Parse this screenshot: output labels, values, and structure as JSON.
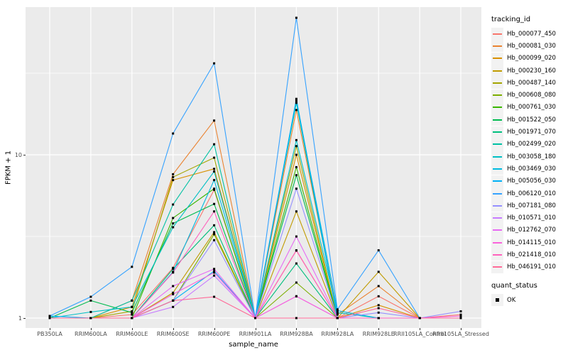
{
  "figure": {
    "background": "#FFFFFF",
    "panel_background": "#EBEBEB",
    "grid_color": "#FFFFFF",
    "axis_text_color": "#4D4D4D",
    "point_color": "#000000"
  },
  "chart_data": {
    "type": "line",
    "title": "",
    "xlabel": "sample_name",
    "ylabel": "FPKM + 1",
    "y_scale": "log10",
    "ylim": [
      0.87,
      80
    ],
    "grid": true,
    "legend_position": "right",
    "y_ticks": [
      {
        "value": 1,
        "label": "1"
      },
      {
        "value": 10,
        "label": "10"
      }
    ],
    "y_minor_breaks": [
      3.1623,
      31.623
    ],
    "x_categories": [
      "PB350LA",
      "RRIM600LA",
      "RRIM600LE",
      "RRIM600SE",
      "RRIM600PE",
      "RRIM901LA",
      "RRIM928BA",
      "RRIM928LA",
      "RRIM928LE",
      "RRII105LA_Control",
      "RRII105LA_Stressed"
    ],
    "legend_title": "tracking_id",
    "quant_legend": {
      "title": "quant_status",
      "items": [
        {
          "label": "OK",
          "marker": "black-square"
        }
      ]
    },
    "series": [
      {
        "name": "Hb_000077_450",
        "color": "#F8766D",
        "values": [
          1.0,
          1.0,
          1.05,
          2.03,
          6.1,
          1.0,
          2.59,
          1.0,
          1.36,
          1.0,
          1.05
        ]
      },
      {
        "name": "Hb_000081_030",
        "color": "#EA8331",
        "values": [
          1.0,
          1.0,
          1.28,
          7.6,
          16.2,
          1.0,
          18.8,
          1.05,
          1.57,
          1.0,
          1.0
        ]
      },
      {
        "name": "Hb_000099_020",
        "color": "#D89000",
        "values": [
          1.0,
          1.0,
          1.17,
          7.0,
          8.2,
          1.0,
          10.0,
          1.0,
          1.2,
          1.0,
          1.0
        ]
      },
      {
        "name": "Hb_000230_160",
        "color": "#C09B00",
        "values": [
          1.0,
          1.0,
          1.0,
          1.43,
          3.36,
          1.0,
          4.5,
          1.0,
          1.92,
          1.0,
          1.0
        ]
      },
      {
        "name": "Hb_000487_140",
        "color": "#A3A500",
        "values": [
          1.0,
          1.0,
          1.1,
          7.3,
          9.6,
          1.0,
          11.3,
          1.0,
          1.0,
          1.0,
          1.0
        ]
      },
      {
        "name": "Hb_000608_080",
        "color": "#7CAE00",
        "values": [
          1.0,
          1.0,
          1.0,
          1.28,
          3.26,
          1.0,
          1.65,
          1.0,
          1.0,
          1.0,
          1.0
        ]
      },
      {
        "name": "Hb_000761_030",
        "color": "#39B600",
        "values": [
          1.0,
          1.0,
          1.0,
          4.1,
          6.2,
          1.0,
          8.4,
          1.0,
          1.0,
          1.0,
          1.0
        ]
      },
      {
        "name": "Hb_001522_050",
        "color": "#00BB4E",
        "values": [
          1.0,
          1.28,
          1.08,
          3.8,
          5.0,
          1.0,
          7.5,
          1.0,
          1.0,
          1.0,
          1.0
        ]
      },
      {
        "name": "Hb_001971_070",
        "color": "#00BF7D",
        "values": [
          1.0,
          1.0,
          1.0,
          2.0,
          3.7,
          1.0,
          2.16,
          1.0,
          1.0,
          1.0,
          1.0
        ]
      },
      {
        "name": "Hb_002499_020",
        "color": "#00C1A3",
        "values": [
          1.0,
          1.0,
          1.28,
          4.96,
          11.6,
          1.0,
          20.8,
          1.0,
          1.0,
          1.0,
          1.0
        ]
      },
      {
        "name": "Hb_003058_180",
        "color": "#00BFC4",
        "values": [
          1.0,
          1.09,
          1.17,
          3.6,
          7.9,
          1.0,
          12.3,
          1.08,
          1.0,
          1.0,
          1.0
        ]
      },
      {
        "name": "Hb_003469_030",
        "color": "#00BAE0",
        "values": [
          1.0,
          1.0,
          1.0,
          1.92,
          7.0,
          1.0,
          21.4,
          1.11,
          1.0,
          1.0,
          1.0
        ]
      },
      {
        "name": "Hb_005056_030",
        "color": "#00B0F6",
        "values": [
          1.03,
          1.0,
          1.0,
          1.28,
          1.94,
          1.0,
          22.0,
          1.0,
          1.0,
          1.0,
          1.0
        ]
      },
      {
        "name": "Hb_006120_010",
        "color": "#35A2FF",
        "values": [
          1.03,
          1.35,
          2.06,
          13.5,
          36.3,
          1.0,
          69.0,
          1.13,
          2.6,
          1.0,
          1.0
        ]
      },
      {
        "name": "Hb_007181_080",
        "color": "#9590FF",
        "values": [
          1.0,
          1.0,
          1.0,
          1.28,
          3.0,
          1.0,
          6.2,
          1.0,
          1.08,
          1.0,
          1.1
        ]
      },
      {
        "name": "Hb_010571_010",
        "color": "#C77CFF",
        "values": [
          1.0,
          1.0,
          1.0,
          1.17,
          1.82,
          1.0,
          1.36,
          1.0,
          1.0,
          1.0,
          1.0
        ]
      },
      {
        "name": "Hb_012762_070",
        "color": "#E76BF3",
        "values": [
          1.0,
          1.0,
          1.0,
          1.57,
          2.0,
          1.0,
          3.16,
          1.0,
          1.0,
          1.0,
          1.0
        ]
      },
      {
        "name": "Hb_014115_010",
        "color": "#FA62DB",
        "values": [
          1.0,
          1.0,
          1.0,
          1.4,
          1.9,
          1.0,
          1.36,
          1.0,
          1.0,
          1.0,
          1.03
        ]
      },
      {
        "name": "Hb_021418_010",
        "color": "#FF62BC",
        "values": [
          1.0,
          1.0,
          1.0,
          1.9,
          4.5,
          1.0,
          2.6,
          1.0,
          1.0,
          1.0,
          1.0
        ]
      },
      {
        "name": "Hb_046191_010",
        "color": "#FF6A98",
        "values": [
          1.0,
          1.0,
          1.0,
          1.28,
          1.35,
          1.0,
          1.0,
          1.0,
          1.15,
          1.0,
          1.0
        ]
      }
    ]
  }
}
